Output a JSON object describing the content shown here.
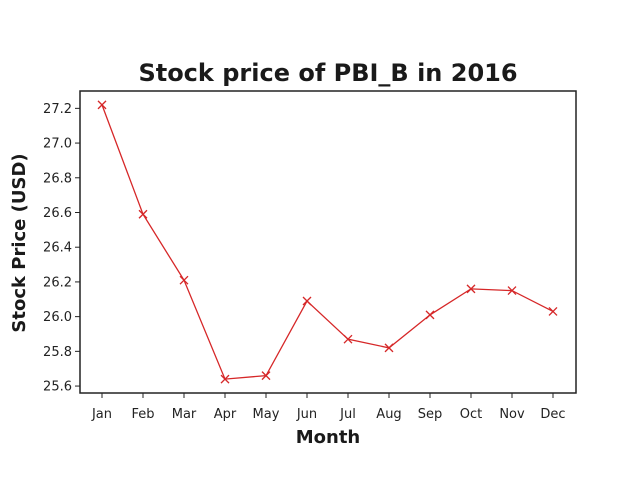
{
  "chart_data": {
    "type": "line",
    "title": "Stock price of PBI_B in 2016",
    "xlabel": "Month",
    "ylabel": "Stock Price (USD)",
    "categories": [
      "Jan",
      "Feb",
      "Mar",
      "Apr",
      "May",
      "Jun",
      "Jul",
      "Aug",
      "Sep",
      "Oct",
      "Nov",
      "Dec"
    ],
    "values": [
      27.22,
      26.59,
      26.21,
      25.64,
      25.66,
      26.09,
      25.87,
      25.82,
      26.01,
      26.16,
      26.15,
      26.03
    ],
    "ylim": [
      25.56,
      27.3
    ],
    "yticks": [
      "25.6",
      "25.8",
      "26.0",
      "26.2",
      "26.4",
      "26.6",
      "26.8",
      "27.0",
      "27.2"
    ],
    "marker": "x",
    "line_color": "#d62728",
    "grid": false,
    "legend": false
  }
}
